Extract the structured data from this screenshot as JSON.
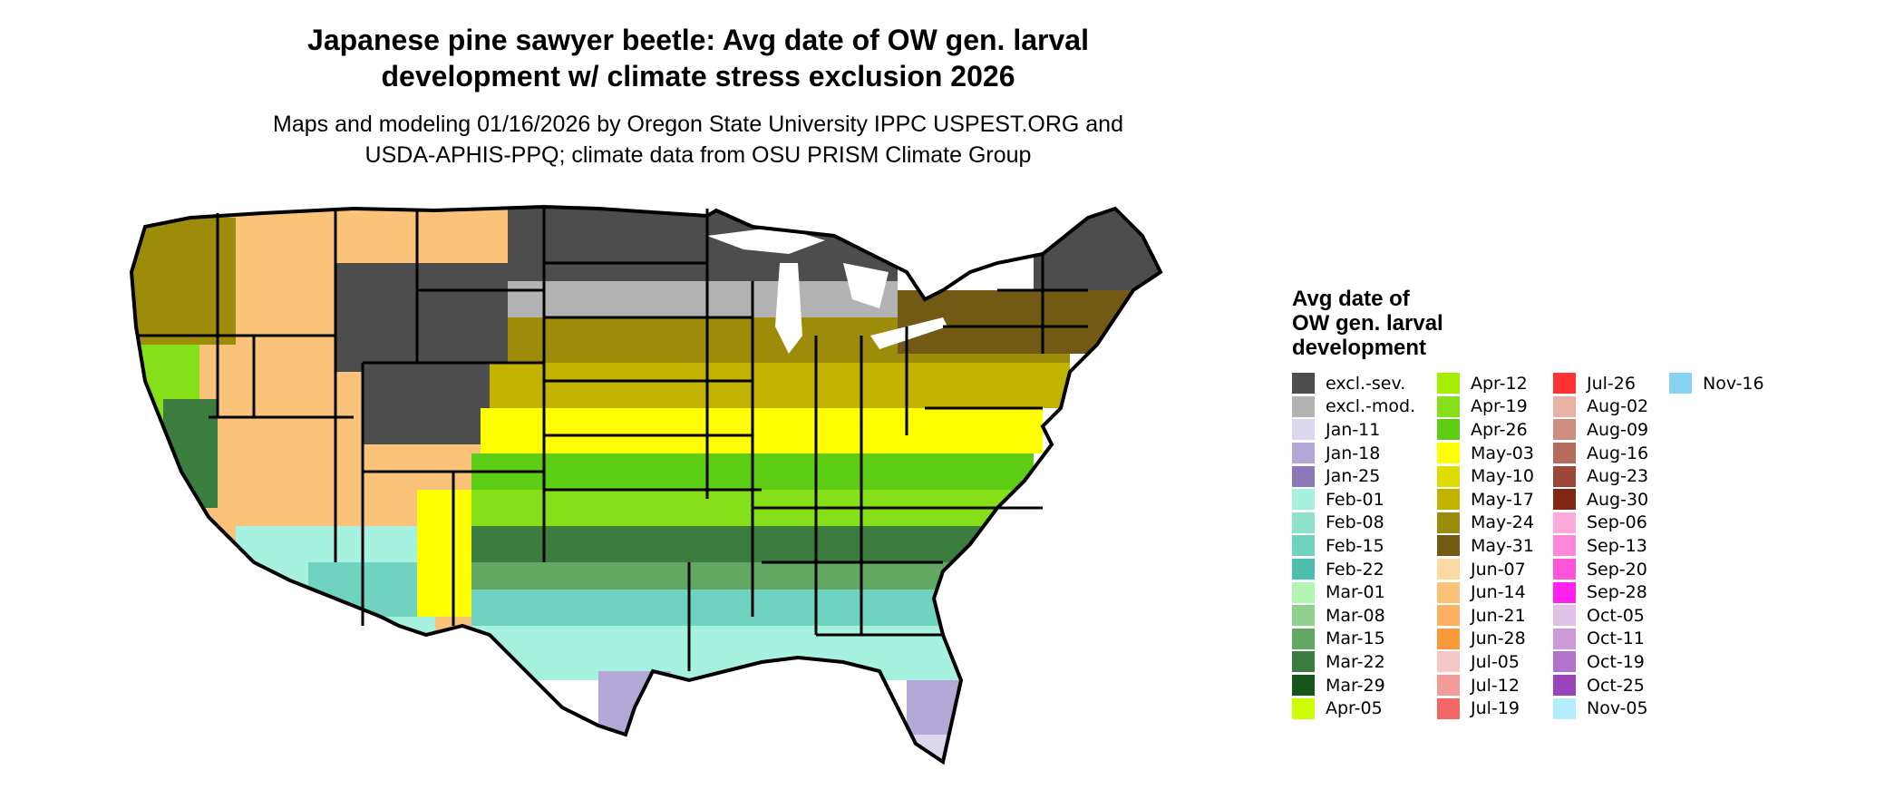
{
  "title_line1": "Japanese pine sawyer beetle: Avg date of OW gen. larval",
  "title_line2": "development w/ climate stress exclusion 2026",
  "subtitle_line1": "Maps and modeling 01/16/2026 by Oregon State University IPPC USPEST.ORG and",
  "subtitle_line2": "USDA-APHIS-PPQ; climate data from OSU PRISM Climate Group",
  "legend": {
    "title_line1": "Avg date of",
    "title_line2": "OW gen. larval",
    "title_line3": "development",
    "items": [
      {
        "label": "excl.-sev.",
        "color": "#4d4d4d"
      },
      {
        "label": "excl.-mod.",
        "color": "#b3b3b3"
      },
      {
        "label": "Jan-11",
        "color": "#dcd6ee"
      },
      {
        "label": "Jan-18",
        "color": "#b3a8d6"
      },
      {
        "label": "Jan-25",
        "color": "#8b78b8"
      },
      {
        "label": "Feb-01",
        "color": "#a6f2de"
      },
      {
        "label": "Feb-08",
        "color": "#8ee3cc"
      },
      {
        "label": "Feb-15",
        "color": "#6fd3bf"
      },
      {
        "label": "Feb-22",
        "color": "#4dbfb0"
      },
      {
        "label": "Mar-01",
        "color": "#b3f5b3"
      },
      {
        "label": "Mar-08",
        "color": "#8fcf8f"
      },
      {
        "label": "Mar-15",
        "color": "#62a862"
      },
      {
        "label": "Mar-22",
        "color": "#3a7d3f"
      },
      {
        "label": "Mar-29",
        "color": "#17561a"
      },
      {
        "label": "Apr-05",
        "color": "#ccff00"
      },
      {
        "label": "Apr-12",
        "color": "#a6ee00"
      },
      {
        "label": "Apr-19",
        "color": "#85e01a"
      },
      {
        "label": "Apr-26",
        "color": "#5ccd12"
      },
      {
        "label": "May-03",
        "color": "#ffff00"
      },
      {
        "label": "May-10",
        "color": "#e0db00"
      },
      {
        "label": "May-17",
        "color": "#c2b300"
      },
      {
        "label": "May-24",
        "color": "#9c8c0a"
      },
      {
        "label": "May-31",
        "color": "#735a14"
      },
      {
        "label": "Jun-07",
        "color": "#fcd9a0"
      },
      {
        "label": "Jun-14",
        "color": "#fbc27a"
      },
      {
        "label": "Jun-21",
        "color": "#fbb064"
      },
      {
        "label": "Jun-28",
        "color": "#fb9a3a"
      },
      {
        "label": "Jul-05",
        "color": "#f5c8c8"
      },
      {
        "label": "Jul-12",
        "color": "#f39a9a"
      },
      {
        "label": "Jul-19",
        "color": "#f36767"
      },
      {
        "label": "Jul-26",
        "color": "#ff3333"
      },
      {
        "label": "Aug-02",
        "color": "#e8b2a6"
      },
      {
        "label": "Aug-09",
        "color": "#cf8e80"
      },
      {
        "label": "Aug-16",
        "color": "#b66b5c"
      },
      {
        "label": "Aug-23",
        "color": "#9c4838"
      },
      {
        "label": "Aug-30",
        "color": "#802814"
      },
      {
        "label": "Sep-06",
        "color": "#ffaadd"
      },
      {
        "label": "Sep-13",
        "color": "#ff88dd"
      },
      {
        "label": "Sep-20",
        "color": "#ff55dd"
      },
      {
        "label": "Sep-28",
        "color": "#ff22ee"
      },
      {
        "label": "Oct-05",
        "color": "#e0c2e6"
      },
      {
        "label": "Oct-11",
        "color": "#cc99d9"
      },
      {
        "label": "Oct-19",
        "color": "#b373cc"
      },
      {
        "label": "Oct-25",
        "color": "#9944bb"
      },
      {
        "label": "Nov-05",
        "color": "#b3eeff"
      },
      {
        "label": "Nov-16",
        "color": "#85d3f0"
      }
    ]
  },
  "map_colors": {
    "excluded_severe": "#4d4d4d",
    "excluded_moderate": "#b3b3b3",
    "peach": "#fbc27a",
    "olive": "#9c8c0a",
    "dark_olive": "#735a14",
    "mustard": "#c2b300",
    "yellow": "#ffff00",
    "lime": "#85e01a",
    "green": "#5ccd12",
    "dark_green": "#3a7d3f",
    "mid_green": "#62a862",
    "teal": "#6fd3bf",
    "aqua": "#a6f2de",
    "lavender": "#b3a8d6",
    "light_lavender": "#dcd6ee",
    "border": "#000000"
  }
}
